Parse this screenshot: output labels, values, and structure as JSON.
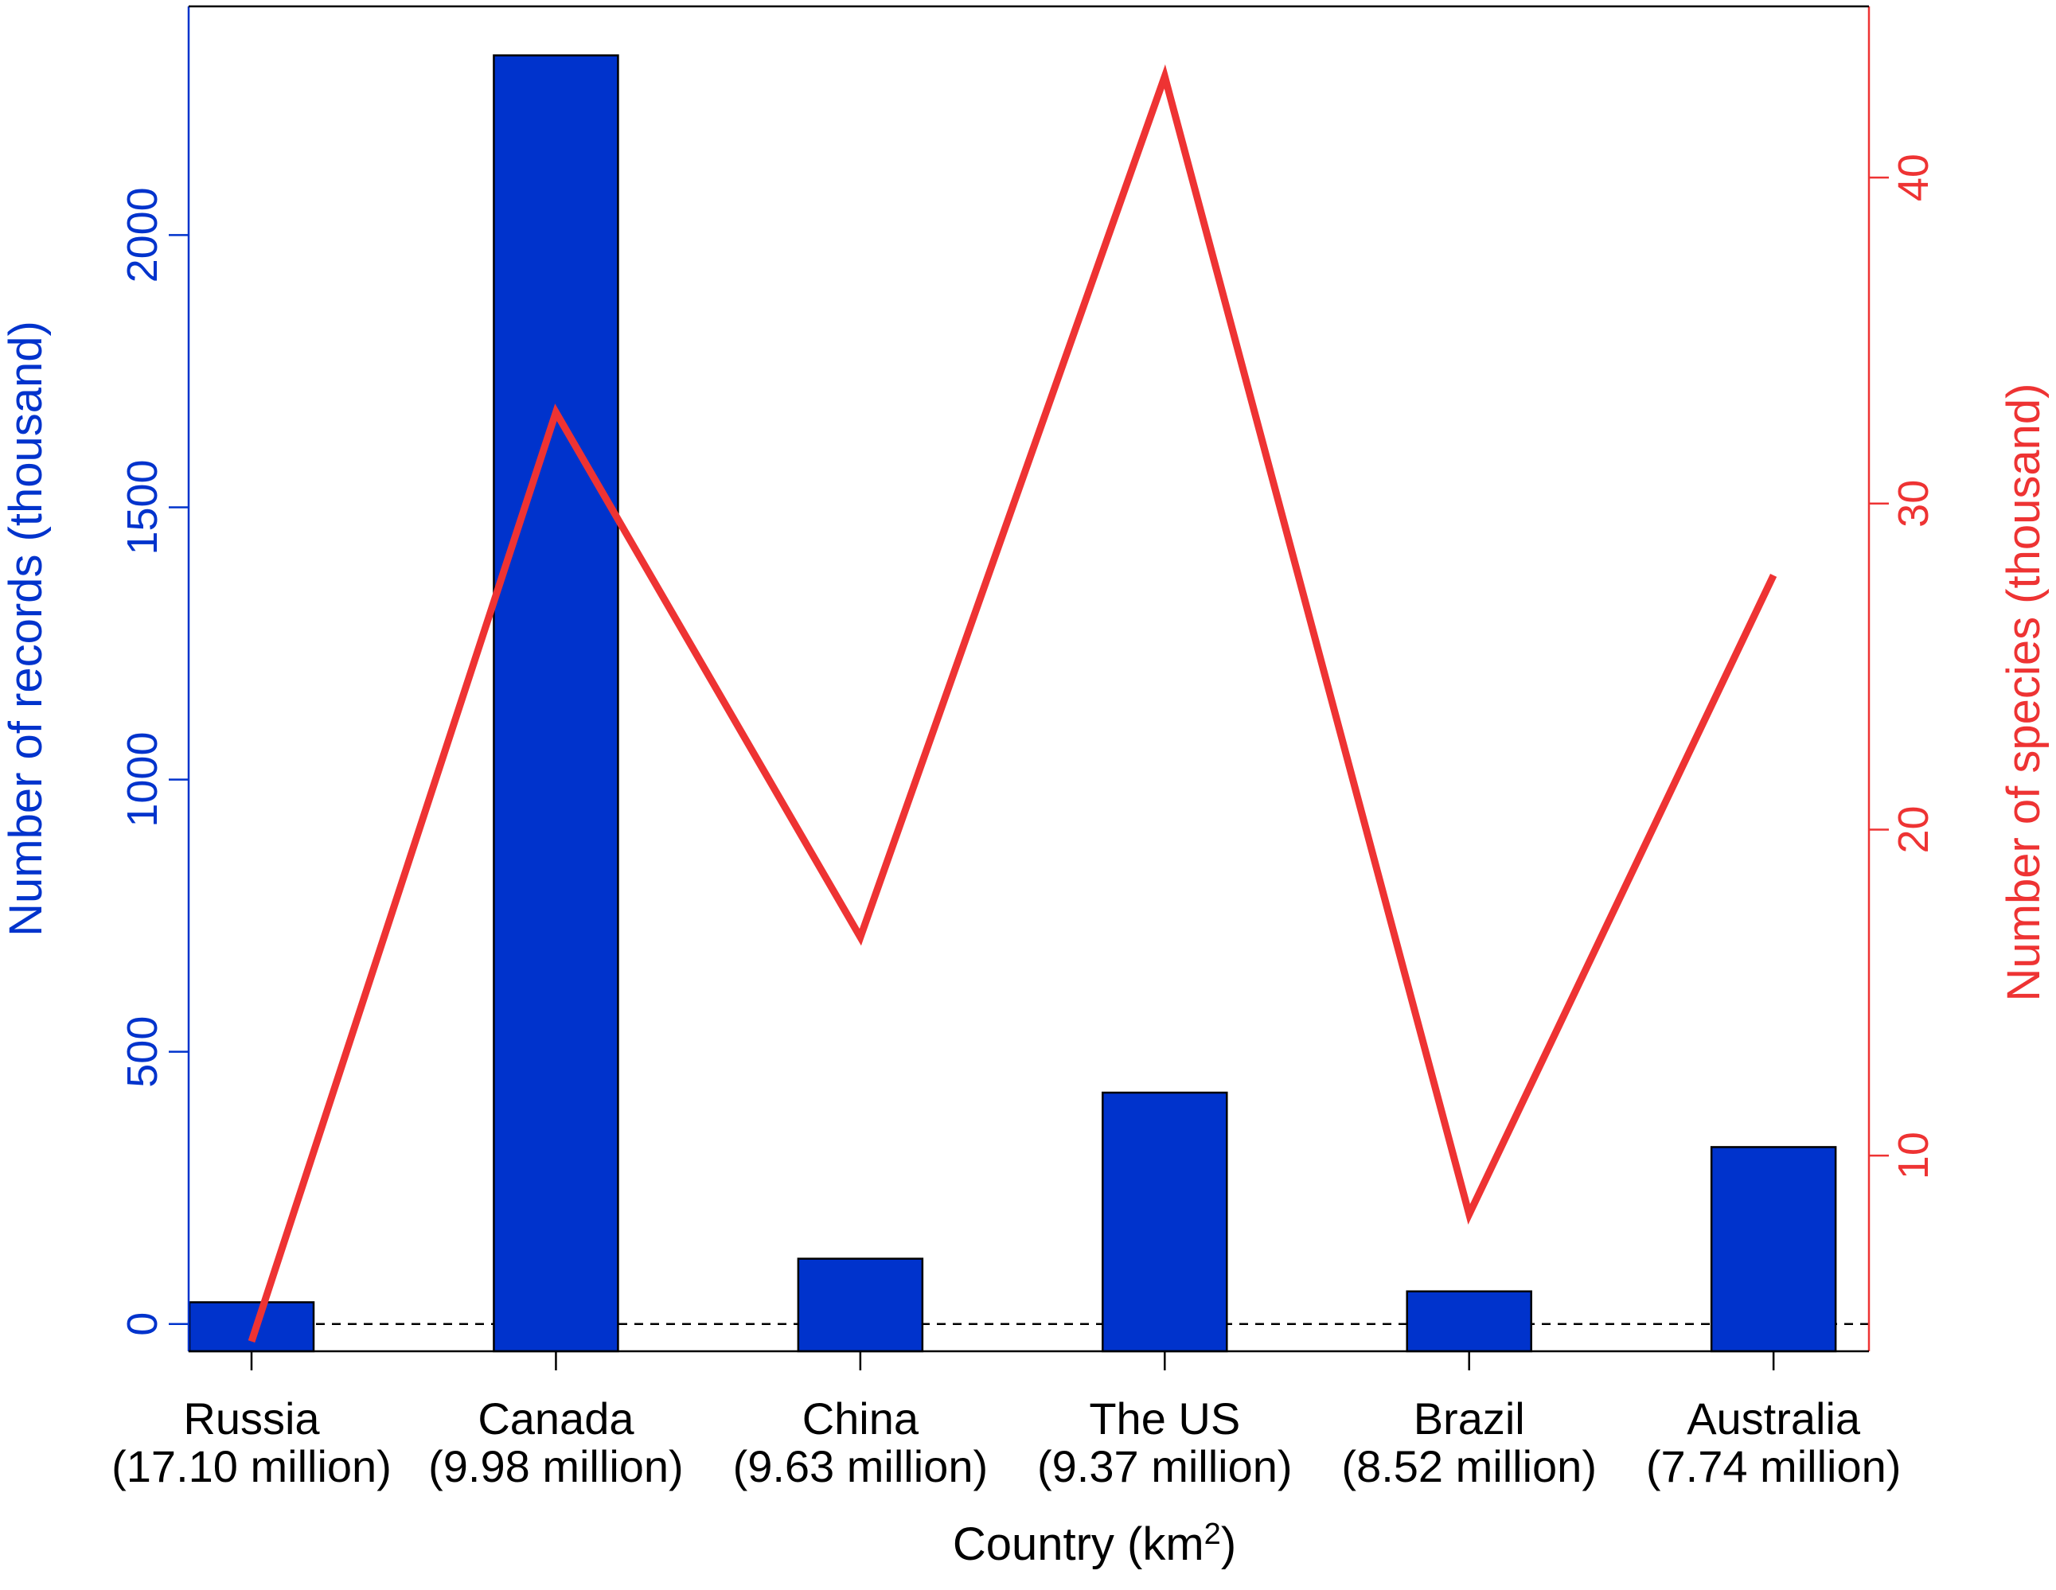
{
  "chart_data": {
    "type": "bar",
    "xlabel_main": "Country (km",
    "xlabel_sup": "2",
    "xlabel_close": ")",
    "ylabel": "Number of records (thousand)",
    "y2label": "Number of species (thousand)",
    "categories": [
      {
        "name": "Russia",
        "area": "(17.10 million)"
      },
      {
        "name": "Canada",
        "area": "(9.98 million)"
      },
      {
        "name": "China",
        "area": "(9.63 million)"
      },
      {
        "name": "The US",
        "area": "(9.37 million)"
      },
      {
        "name": "Brazil",
        "area": "(8.52 million)"
      },
      {
        "name": "Australia",
        "area": "(7.74 million)"
      }
    ],
    "series": [
      {
        "axis": "left",
        "type": "bar",
        "color": "#0033cc",
        "values": [
          40,
          2330,
          120,
          425,
          60,
          325
        ]
      },
      {
        "axis": "right",
        "type": "line",
        "color": "#ee3333",
        "values": [
          4.3,
          32.8,
          16.7,
          43.1,
          8.2,
          27.8
        ]
      }
    ],
    "ylim": [
      -50,
      2420
    ],
    "y2lim": [
      4,
      45.25
    ],
    "yticks": [
      "0",
      "500",
      "1000",
      "1500",
      "2000"
    ],
    "y2ticks": [
      "10",
      "20",
      "30",
      "40"
    ],
    "y_tick_values": [
      0,
      500,
      1000,
      1500,
      2000
    ],
    "y2_tick_values": [
      10,
      20,
      30,
      40
    ],
    "baseline": 0,
    "colors": {
      "left_axis": "#0033cc",
      "right_axis": "#ee3333",
      "bar_fill": "#0033cc",
      "bar_edge": "#000000",
      "line": "#ee3333"
    }
  }
}
